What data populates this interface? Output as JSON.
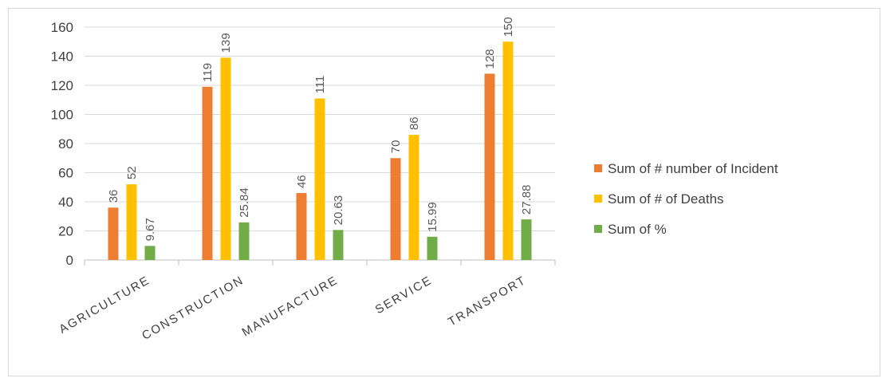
{
  "chart_data": {
    "type": "bar",
    "categories": [
      "AGRICULTURE",
      "CONSTRUCTION",
      "MANUFACTURE",
      "SERVICE",
      "TRANSPORT"
    ],
    "series": [
      {
        "name": "Sum of # number of Incident",
        "color": "#ED7D31",
        "values": [
          36,
          119,
          46,
          70,
          128
        ],
        "labels": [
          "36",
          "119",
          "46",
          "70",
          "128"
        ]
      },
      {
        "name": "Sum of # of Deaths",
        "color": "#FFC000",
        "values": [
          52,
          139,
          111,
          86,
          150
        ],
        "labels": [
          "52",
          "139",
          "111",
          "86",
          "150"
        ]
      },
      {
        "name": "Sum of %",
        "color": "#70AD47",
        "values": [
          9.67,
          25.84,
          20.63,
          15.99,
          27.88
        ],
        "labels": [
          "9.67",
          "25.84",
          "20.63",
          "15.99",
          "27.88"
        ]
      }
    ],
    "ylim": [
      0,
      160
    ],
    "yticks": [
      0,
      20,
      40,
      60,
      80,
      100,
      120,
      140,
      160
    ],
    "grid": true,
    "legend": "right"
  }
}
